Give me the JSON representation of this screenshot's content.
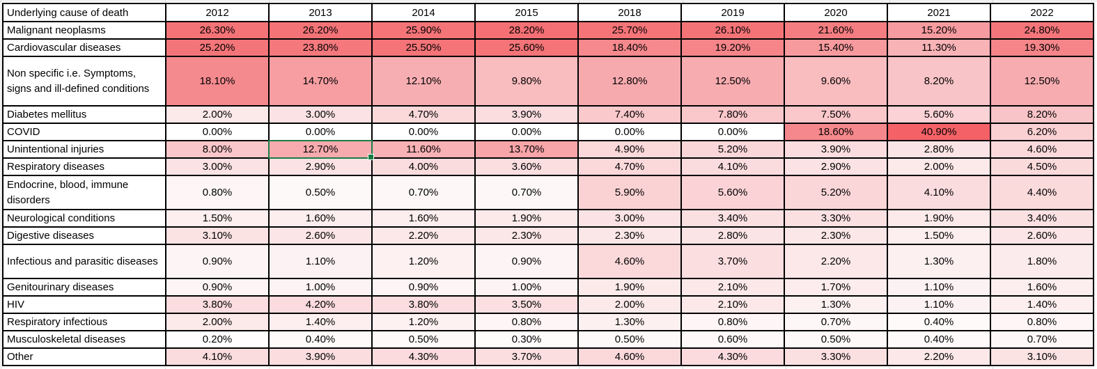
{
  "table": {
    "header": {
      "label": "Underlying cause of death",
      "years": [
        "2012",
        "2013",
        "2014",
        "2015",
        "2018",
        "2019",
        "2020",
        "2021",
        "2022"
      ]
    },
    "rows": [
      {
        "label": "Malignant neoplasms",
        "values": [
          "26.30%",
          "26.20%",
          "25.90%",
          "28.20%",
          "25.70%",
          "26.10%",
          "21.60%",
          "15.20%",
          "24.80%"
        ]
      },
      {
        "label": "Cardiovascular diseases",
        "values": [
          "25.20%",
          "23.80%",
          "25.50%",
          "25.60%",
          "18.40%",
          "19.20%",
          "15.40%",
          "11.30%",
          "19.30%"
        ]
      },
      {
        "label": "Non specific i.e. Symptoms, signs and ill-defined conditions",
        "values": [
          "18.10%",
          "14.70%",
          "12.10%",
          "9.80%",
          "12.80%",
          "12.50%",
          "9.60%",
          "8.20%",
          "12.50%"
        ]
      },
      {
        "label": "Diabetes mellitus",
        "values": [
          "2.00%",
          "3.00%",
          "4.70%",
          "3.90%",
          "7.40%",
          "7.80%",
          "7.50%",
          "5.60%",
          "8.20%"
        ]
      },
      {
        "label": "COVID",
        "values": [
          "0.00%",
          "0.00%",
          "0.00%",
          "0.00%",
          "0.00%",
          "0.00%",
          "18.60%",
          "40.90%",
          "6.20%"
        ]
      },
      {
        "label": "Unintentional injuries",
        "values": [
          "8.00%",
          "12.70%",
          "11.60%",
          "13.70%",
          "4.90%",
          "5.20%",
          "3.90%",
          "2.80%",
          "4.60%"
        ]
      },
      {
        "label": "Respiratory diseases",
        "values": [
          "3.00%",
          "2.90%",
          "4.00%",
          "3.60%",
          "4.70%",
          "4.10%",
          "2.90%",
          "2.00%",
          "4.50%"
        ]
      },
      {
        "label": "Endocrine, blood, immune disorders",
        "values": [
          "0.80%",
          "0.50%",
          "0.70%",
          "0.70%",
          "5.90%",
          "5.60%",
          "5.20%",
          "4.10%",
          "4.40%"
        ]
      },
      {
        "label": "Neurological conditions",
        "values": [
          "1.50%",
          "1.60%",
          "1.60%",
          "1.90%",
          "3.00%",
          "3.40%",
          "3.30%",
          "1.90%",
          "3.40%"
        ]
      },
      {
        "label": "Digestive diseases",
        "values": [
          "3.10%",
          "2.60%",
          "2.20%",
          "2.30%",
          "2.30%",
          "2.80%",
          "2.30%",
          "1.50%",
          "2.60%"
        ]
      },
      {
        "label": "Infectious and parasitic diseases",
        "values": [
          "0.90%",
          "1.10%",
          "1.20%",
          "0.90%",
          "4.60%",
          "3.70%",
          "2.20%",
          "1.30%",
          "1.80%"
        ]
      },
      {
        "label": "Genitourinary diseases",
        "values": [
          "0.90%",
          "1.00%",
          "0.90%",
          "1.00%",
          "1.90%",
          "2.10%",
          "1.70%",
          "1.10%",
          "1.60%"
        ]
      },
      {
        "label": "HIV",
        "values": [
          "3.80%",
          "4.20%",
          "3.80%",
          "3.50%",
          "2.00%",
          "2.10%",
          "1.30%",
          "1.10%",
          "1.40%"
        ]
      },
      {
        "label": "Respiratory infectious",
        "values": [
          "2.00%",
          "1.40%",
          "1.20%",
          "0.80%",
          "1.30%",
          "0.80%",
          "0.70%",
          "0.40%",
          "0.80%"
        ]
      },
      {
        "label": "Musculoskeletal diseases",
        "values": [
          "0.20%",
          "0.40%",
          "0.50%",
          "0.30%",
          "0.50%",
          "0.60%",
          "0.50%",
          "0.40%",
          "0.70%"
        ]
      },
      {
        "label": "Other",
        "values": [
          "4.10%",
          "3.90%",
          "4.30%",
          "3.70%",
          "4.60%",
          "4.30%",
          "3.30%",
          "2.20%",
          "3.10%"
        ]
      }
    ]
  },
  "selection": {
    "row_index": 5,
    "col_index": 1,
    "value": "12.70%",
    "border_color": "#1A7C45"
  },
  "heatmap": {
    "border_color": "#000000",
    "anchors": [
      [
        0,
        "#FFFFFF"
      ],
      [
        0.4,
        "#FEFAFA"
      ],
      [
        1,
        "#FDF3F4"
      ],
      [
        2,
        "#FCE9EA"
      ],
      [
        3.5,
        "#FBDFE1"
      ],
      [
        5,
        "#FBD7D9"
      ],
      [
        7,
        "#FACBCE"
      ],
      [
        9,
        "#F9C0C3"
      ],
      [
        11,
        "#F8B5B8"
      ],
      [
        13,
        "#F7A9AD"
      ],
      [
        15.5,
        "#F6999D"
      ],
      [
        18.5,
        "#F5888C"
      ],
      [
        21,
        "#F47F83"
      ],
      [
        24,
        "#F4777B"
      ],
      [
        28,
        "#F47074"
      ],
      [
        34,
        "#F46A6E"
      ],
      [
        41,
        "#F46166"
      ]
    ]
  },
  "chart_data": {
    "type": "heatmap",
    "title": "Underlying cause of death",
    "columns": [
      "2012",
      "2013",
      "2014",
      "2015",
      "2018",
      "2019",
      "2020",
      "2021",
      "2022"
    ],
    "rows": [
      "Malignant neoplasms",
      "Cardiovascular diseases",
      "Non specific i.e. Symptoms, signs and ill-defined conditions",
      "Diabetes mellitus",
      "COVID",
      "Unintentional injuries",
      "Respiratory diseases",
      "Endocrine, blood, immune disorders",
      "Neurological conditions",
      "Digestive diseases",
      "Infectious and parasitic diseases",
      "Genitourinary diseases",
      "HIV",
      "Respiratory infectious",
      "Musculoskeletal diseases",
      "Other"
    ],
    "values": [
      [
        26.3,
        26.2,
        25.9,
        28.2,
        25.7,
        26.1,
        21.6,
        15.2,
        24.8
      ],
      [
        25.2,
        23.8,
        25.5,
        25.6,
        18.4,
        19.2,
        15.4,
        11.3,
        19.3
      ],
      [
        18.1,
        14.7,
        12.1,
        9.8,
        12.8,
        12.5,
        9.6,
        8.2,
        12.5
      ],
      [
        2.0,
        3.0,
        4.7,
        3.9,
        7.4,
        7.8,
        7.5,
        5.6,
        8.2
      ],
      [
        0.0,
        0.0,
        0.0,
        0.0,
        0.0,
        0.0,
        18.6,
        40.9,
        6.2
      ],
      [
        8.0,
        12.7,
        11.6,
        13.7,
        4.9,
        5.2,
        3.9,
        2.8,
        4.6
      ],
      [
        3.0,
        2.9,
        4.0,
        3.6,
        4.7,
        4.1,
        2.9,
        2.0,
        4.5
      ],
      [
        0.8,
        0.5,
        0.7,
        0.7,
        5.9,
        5.6,
        5.2,
        4.1,
        4.4
      ],
      [
        1.5,
        1.6,
        1.6,
        1.9,
        3.0,
        3.4,
        3.3,
        1.9,
        3.4
      ],
      [
        3.1,
        2.6,
        2.2,
        2.3,
        2.3,
        2.8,
        2.3,
        1.5,
        2.6
      ],
      [
        0.9,
        1.1,
        1.2,
        0.9,
        4.6,
        3.7,
        2.2,
        1.3,
        1.8
      ],
      [
        0.9,
        1.0,
        0.9,
        1.0,
        1.9,
        2.1,
        1.7,
        1.1,
        1.6
      ],
      [
        3.8,
        4.2,
        3.8,
        3.5,
        2.0,
        2.1,
        1.3,
        1.1,
        1.4
      ],
      [
        2.0,
        1.4,
        1.2,
        0.8,
        1.3,
        0.8,
        0.7,
        0.4,
        0.8
      ],
      [
        0.2,
        0.4,
        0.5,
        0.3,
        0.5,
        0.6,
        0.5,
        0.4,
        0.7
      ],
      [
        4.1,
        3.9,
        4.3,
        3.7,
        4.6,
        4.3,
        3.3,
        2.2,
        3.1
      ]
    ],
    "unit": "%",
    "color_scale": {
      "min": 0,
      "max": 40.9,
      "min_color": "#FFFFFF",
      "max_color": "#F46166"
    },
    "legend": "none",
    "grid": "black cell borders"
  }
}
